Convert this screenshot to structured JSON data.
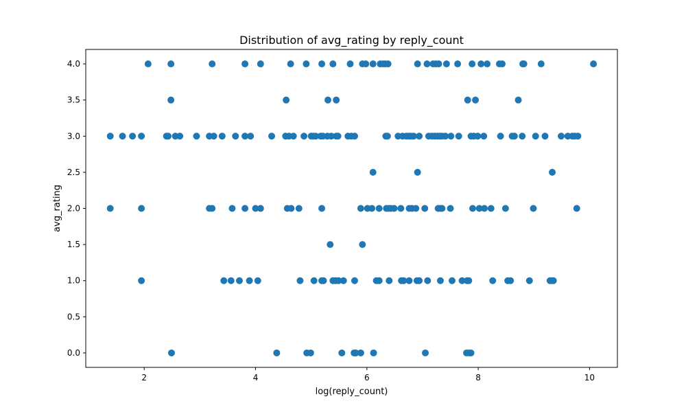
{
  "chart_data": {
    "type": "scatter",
    "title": "Distribution of avg_rating by reply_count",
    "xlabel": "log(reply_count)",
    "ylabel": "avg_rating",
    "xlim": [
      0.95,
      10.5
    ],
    "ylim": [
      -0.2,
      4.2
    ],
    "xticks": [
      2,
      4,
      6,
      8,
      10
    ],
    "yticks": [
      0.0,
      0.5,
      1.0,
      1.5,
      2.0,
      2.5,
      3.0,
      3.5,
      4.0
    ],
    "xtick_labels": [
      "2",
      "4",
      "6",
      "8",
      "10"
    ],
    "ytick_labels": [
      "0.0",
      "0.5",
      "1.0",
      "1.5",
      "2.0",
      "2.5",
      "3.0",
      "3.5",
      "4.0"
    ],
    "grid": false,
    "marker_color": "#1f77b4",
    "points": [
      [
        2.07,
        4.0
      ],
      [
        2.48,
        4.0
      ],
      [
        3.22,
        4.0
      ],
      [
        3.81,
        4.0
      ],
      [
        4.09,
        4.0
      ],
      [
        4.63,
        4.0
      ],
      [
        4.91,
        4.0
      ],
      [
        5.19,
        4.0
      ],
      [
        5.39,
        4.0
      ],
      [
        5.7,
        4.0
      ],
      [
        5.92,
        4.0
      ],
      [
        5.98,
        4.0
      ],
      [
        6.11,
        4.0
      ],
      [
        6.24,
        4.0
      ],
      [
        6.29,
        4.0
      ],
      [
        6.33,
        4.0
      ],
      [
        6.38,
        4.0
      ],
      [
        6.91,
        4.0
      ],
      [
        7.08,
        4.0
      ],
      [
        7.19,
        4.0
      ],
      [
        7.24,
        4.0
      ],
      [
        7.29,
        4.0
      ],
      [
        7.43,
        4.0
      ],
      [
        7.63,
        4.0
      ],
      [
        7.89,
        4.0
      ],
      [
        8.05,
        4.0
      ],
      [
        8.16,
        4.0
      ],
      [
        8.38,
        4.0
      ],
      [
        8.43,
        4.0
      ],
      [
        8.8,
        4.0
      ],
      [
        8.82,
        4.0
      ],
      [
        9.13,
        4.0
      ],
      [
        10.07,
        4.0
      ],
      [
        2.48,
        3.5
      ],
      [
        4.55,
        3.5
      ],
      [
        5.3,
        3.5
      ],
      [
        5.45,
        3.5
      ],
      [
        7.81,
        3.5
      ],
      [
        7.95,
        3.5
      ],
      [
        8.72,
        3.5
      ],
      [
        1.39,
        3.0
      ],
      [
        1.61,
        3.0
      ],
      [
        1.79,
        3.0
      ],
      [
        1.95,
        3.0
      ],
      [
        2.4,
        3.0
      ],
      [
        2.43,
        3.0
      ],
      [
        2.56,
        3.0
      ],
      [
        2.64,
        3.0
      ],
      [
        2.94,
        3.0
      ],
      [
        3.17,
        3.0
      ],
      [
        3.25,
        3.0
      ],
      [
        3.4,
        3.0
      ],
      [
        3.64,
        3.0
      ],
      [
        3.81,
        3.0
      ],
      [
        3.91,
        3.0
      ],
      [
        4.29,
        3.0
      ],
      [
        4.54,
        3.0
      ],
      [
        4.6,
        3.0
      ],
      [
        4.68,
        3.0
      ],
      [
        4.87,
        3.0
      ],
      [
        5.0,
        3.0
      ],
      [
        5.04,
        3.0
      ],
      [
        5.08,
        3.0
      ],
      [
        5.17,
        3.0
      ],
      [
        5.21,
        3.0
      ],
      [
        5.29,
        3.0
      ],
      [
        5.36,
        3.0
      ],
      [
        5.45,
        3.0
      ],
      [
        5.48,
        3.0
      ],
      [
        5.66,
        3.0
      ],
      [
        5.72,
        3.0
      ],
      [
        5.78,
        3.0
      ],
      [
        6.34,
        3.0
      ],
      [
        6.37,
        3.0
      ],
      [
        6.56,
        3.0
      ],
      [
        6.64,
        3.0
      ],
      [
        6.71,
        3.0
      ],
      [
        6.76,
        3.0
      ],
      [
        6.79,
        3.0
      ],
      [
        6.84,
        3.0
      ],
      [
        6.94,
        3.0
      ],
      [
        7.11,
        3.0
      ],
      [
        7.17,
        3.0
      ],
      [
        7.22,
        3.0
      ],
      [
        7.27,
        3.0
      ],
      [
        7.31,
        3.0
      ],
      [
        7.35,
        3.0
      ],
      [
        7.41,
        3.0
      ],
      [
        7.51,
        3.0
      ],
      [
        7.65,
        3.0
      ],
      [
        7.87,
        3.0
      ],
      [
        7.92,
        3.0
      ],
      [
        7.99,
        3.0
      ],
      [
        8.1,
        3.0
      ],
      [
        8.4,
        3.0
      ],
      [
        8.61,
        3.0
      ],
      [
        8.65,
        3.0
      ],
      [
        8.79,
        3.0
      ],
      [
        9.03,
        3.0
      ],
      [
        9.2,
        3.0
      ],
      [
        9.49,
        3.0
      ],
      [
        9.61,
        3.0
      ],
      [
        9.69,
        3.0
      ],
      [
        9.73,
        3.0
      ],
      [
        9.79,
        3.0
      ],
      [
        6.11,
        2.5
      ],
      [
        6.91,
        2.5
      ],
      [
        9.33,
        2.5
      ],
      [
        1.39,
        2.0
      ],
      [
        1.95,
        2.0
      ],
      [
        3.17,
        2.0
      ],
      [
        3.22,
        2.0
      ],
      [
        3.58,
        2.0
      ],
      [
        3.81,
        2.0
      ],
      [
        4.0,
        2.0
      ],
      [
        4.09,
        2.0
      ],
      [
        4.57,
        2.0
      ],
      [
        4.64,
        2.0
      ],
      [
        4.78,
        2.0
      ],
      [
        5.19,
        2.0
      ],
      [
        5.89,
        2.0
      ],
      [
        6.01,
        2.0
      ],
      [
        6.09,
        2.0
      ],
      [
        6.22,
        2.0
      ],
      [
        6.35,
        2.0
      ],
      [
        6.39,
        2.0
      ],
      [
        6.43,
        2.0
      ],
      [
        6.49,
        2.0
      ],
      [
        6.61,
        2.0
      ],
      [
        6.76,
        2.0
      ],
      [
        6.81,
        2.0
      ],
      [
        6.88,
        2.0
      ],
      [
        7.04,
        2.0
      ],
      [
        7.28,
        2.0
      ],
      [
        7.32,
        2.0
      ],
      [
        7.35,
        2.0
      ],
      [
        7.5,
        2.0
      ],
      [
        7.9,
        2.0
      ],
      [
        8.02,
        2.0
      ],
      [
        8.11,
        2.0
      ],
      [
        8.23,
        2.0
      ],
      [
        8.49,
        2.0
      ],
      [
        8.99,
        2.0
      ],
      [
        9.77,
        2.0
      ],
      [
        5.34,
        1.5
      ],
      [
        5.92,
        1.5
      ],
      [
        1.95,
        1.0
      ],
      [
        3.43,
        1.0
      ],
      [
        3.56,
        1.0
      ],
      [
        3.71,
        1.0
      ],
      [
        3.89,
        1.0
      ],
      [
        4.04,
        1.0
      ],
      [
        4.8,
        1.0
      ],
      [
        5.05,
        1.0
      ],
      [
        5.19,
        1.0
      ],
      [
        5.22,
        1.0
      ],
      [
        5.39,
        1.0
      ],
      [
        5.44,
        1.0
      ],
      [
        5.49,
        1.0
      ],
      [
        5.58,
        1.0
      ],
      [
        5.78,
        1.0
      ],
      [
        6.17,
        1.0
      ],
      [
        6.22,
        1.0
      ],
      [
        6.4,
        1.0
      ],
      [
        6.62,
        1.0
      ],
      [
        6.66,
        1.0
      ],
      [
        6.76,
        1.0
      ],
      [
        6.9,
        1.0
      ],
      [
        6.94,
        1.0
      ],
      [
        7.09,
        1.0
      ],
      [
        7.32,
        1.0
      ],
      [
        7.53,
        1.0
      ],
      [
        7.71,
        1.0
      ],
      [
        7.8,
        1.0
      ],
      [
        7.83,
        1.0
      ],
      [
        8.26,
        1.0
      ],
      [
        8.53,
        1.0
      ],
      [
        8.58,
        1.0
      ],
      [
        8.92,
        1.0
      ],
      [
        9.29,
        1.0
      ],
      [
        9.33,
        1.0
      ],
      [
        9.35,
        1.0
      ],
      [
        2.49,
        0.0
      ],
      [
        4.38,
        0.0
      ],
      [
        4.92,
        0.0
      ],
      [
        4.99,
        0.0
      ],
      [
        5.55,
        0.0
      ],
      [
        5.77,
        0.0
      ],
      [
        5.8,
        0.0
      ],
      [
        5.89,
        0.0
      ],
      [
        6.12,
        0.0
      ],
      [
        7.05,
        0.0
      ],
      [
        7.79,
        0.0
      ],
      [
        7.84,
        0.0
      ],
      [
        7.87,
        0.0
      ]
    ]
  }
}
